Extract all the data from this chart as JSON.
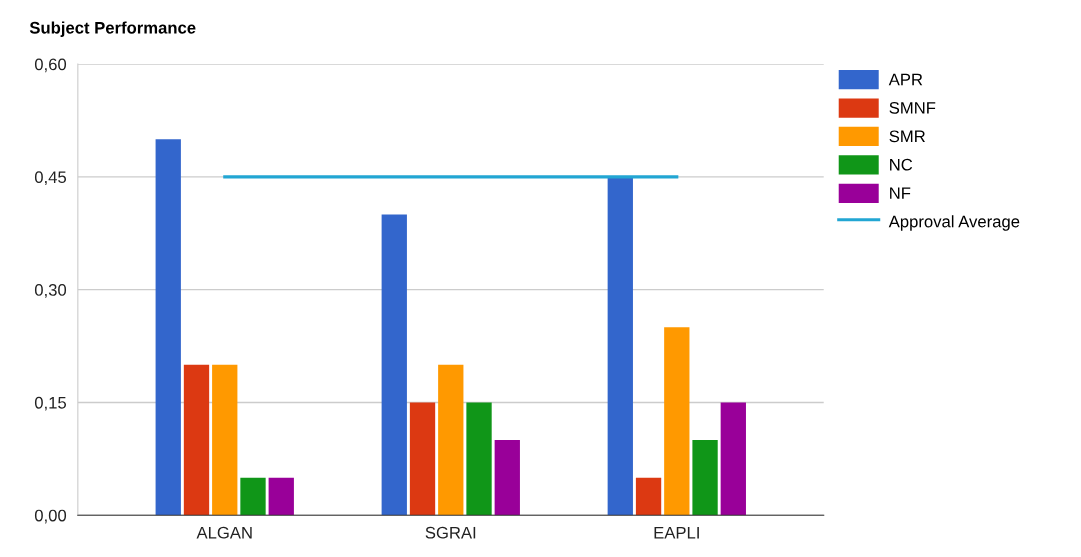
{
  "chart_data": {
    "type": "bar",
    "title": "Subject Performance",
    "categories": [
      "ALGAN",
      "SGRAI",
      "EAPLI"
    ],
    "series": [
      {
        "name": "APR",
        "color": "#3366cc",
        "values": [
          0.5,
          0.4,
          0.45
        ]
      },
      {
        "name": "SMNF",
        "color": "#dc3912",
        "values": [
          0.2,
          0.15,
          0.05
        ]
      },
      {
        "name": "SMR",
        "color": "#ff9900",
        "values": [
          0.2,
          0.2,
          0.25
        ]
      },
      {
        "name": "NC",
        "color": "#109618",
        "values": [
          0.05,
          0.15,
          0.1
        ]
      },
      {
        "name": "NF",
        "color": "#990099",
        "values": [
          0.05,
          0.1,
          0.15
        ]
      },
      {
        "name": "Approval Average",
        "type": "line",
        "color": "#22a6d3",
        "values": [
          0.45,
          0.45,
          0.45
        ]
      }
    ],
    "ylim": [
      0,
      0.6
    ],
    "yticks": [
      {
        "value": 0,
        "label": "0,00"
      },
      {
        "value": 0.15,
        "label": "0,15"
      },
      {
        "value": 0.3,
        "label": "0,30"
      },
      {
        "value": 0.45,
        "label": "0,45"
      },
      {
        "value": 0.6,
        "label": "0,60"
      }
    ],
    "grid": "y",
    "legend": "right"
  }
}
